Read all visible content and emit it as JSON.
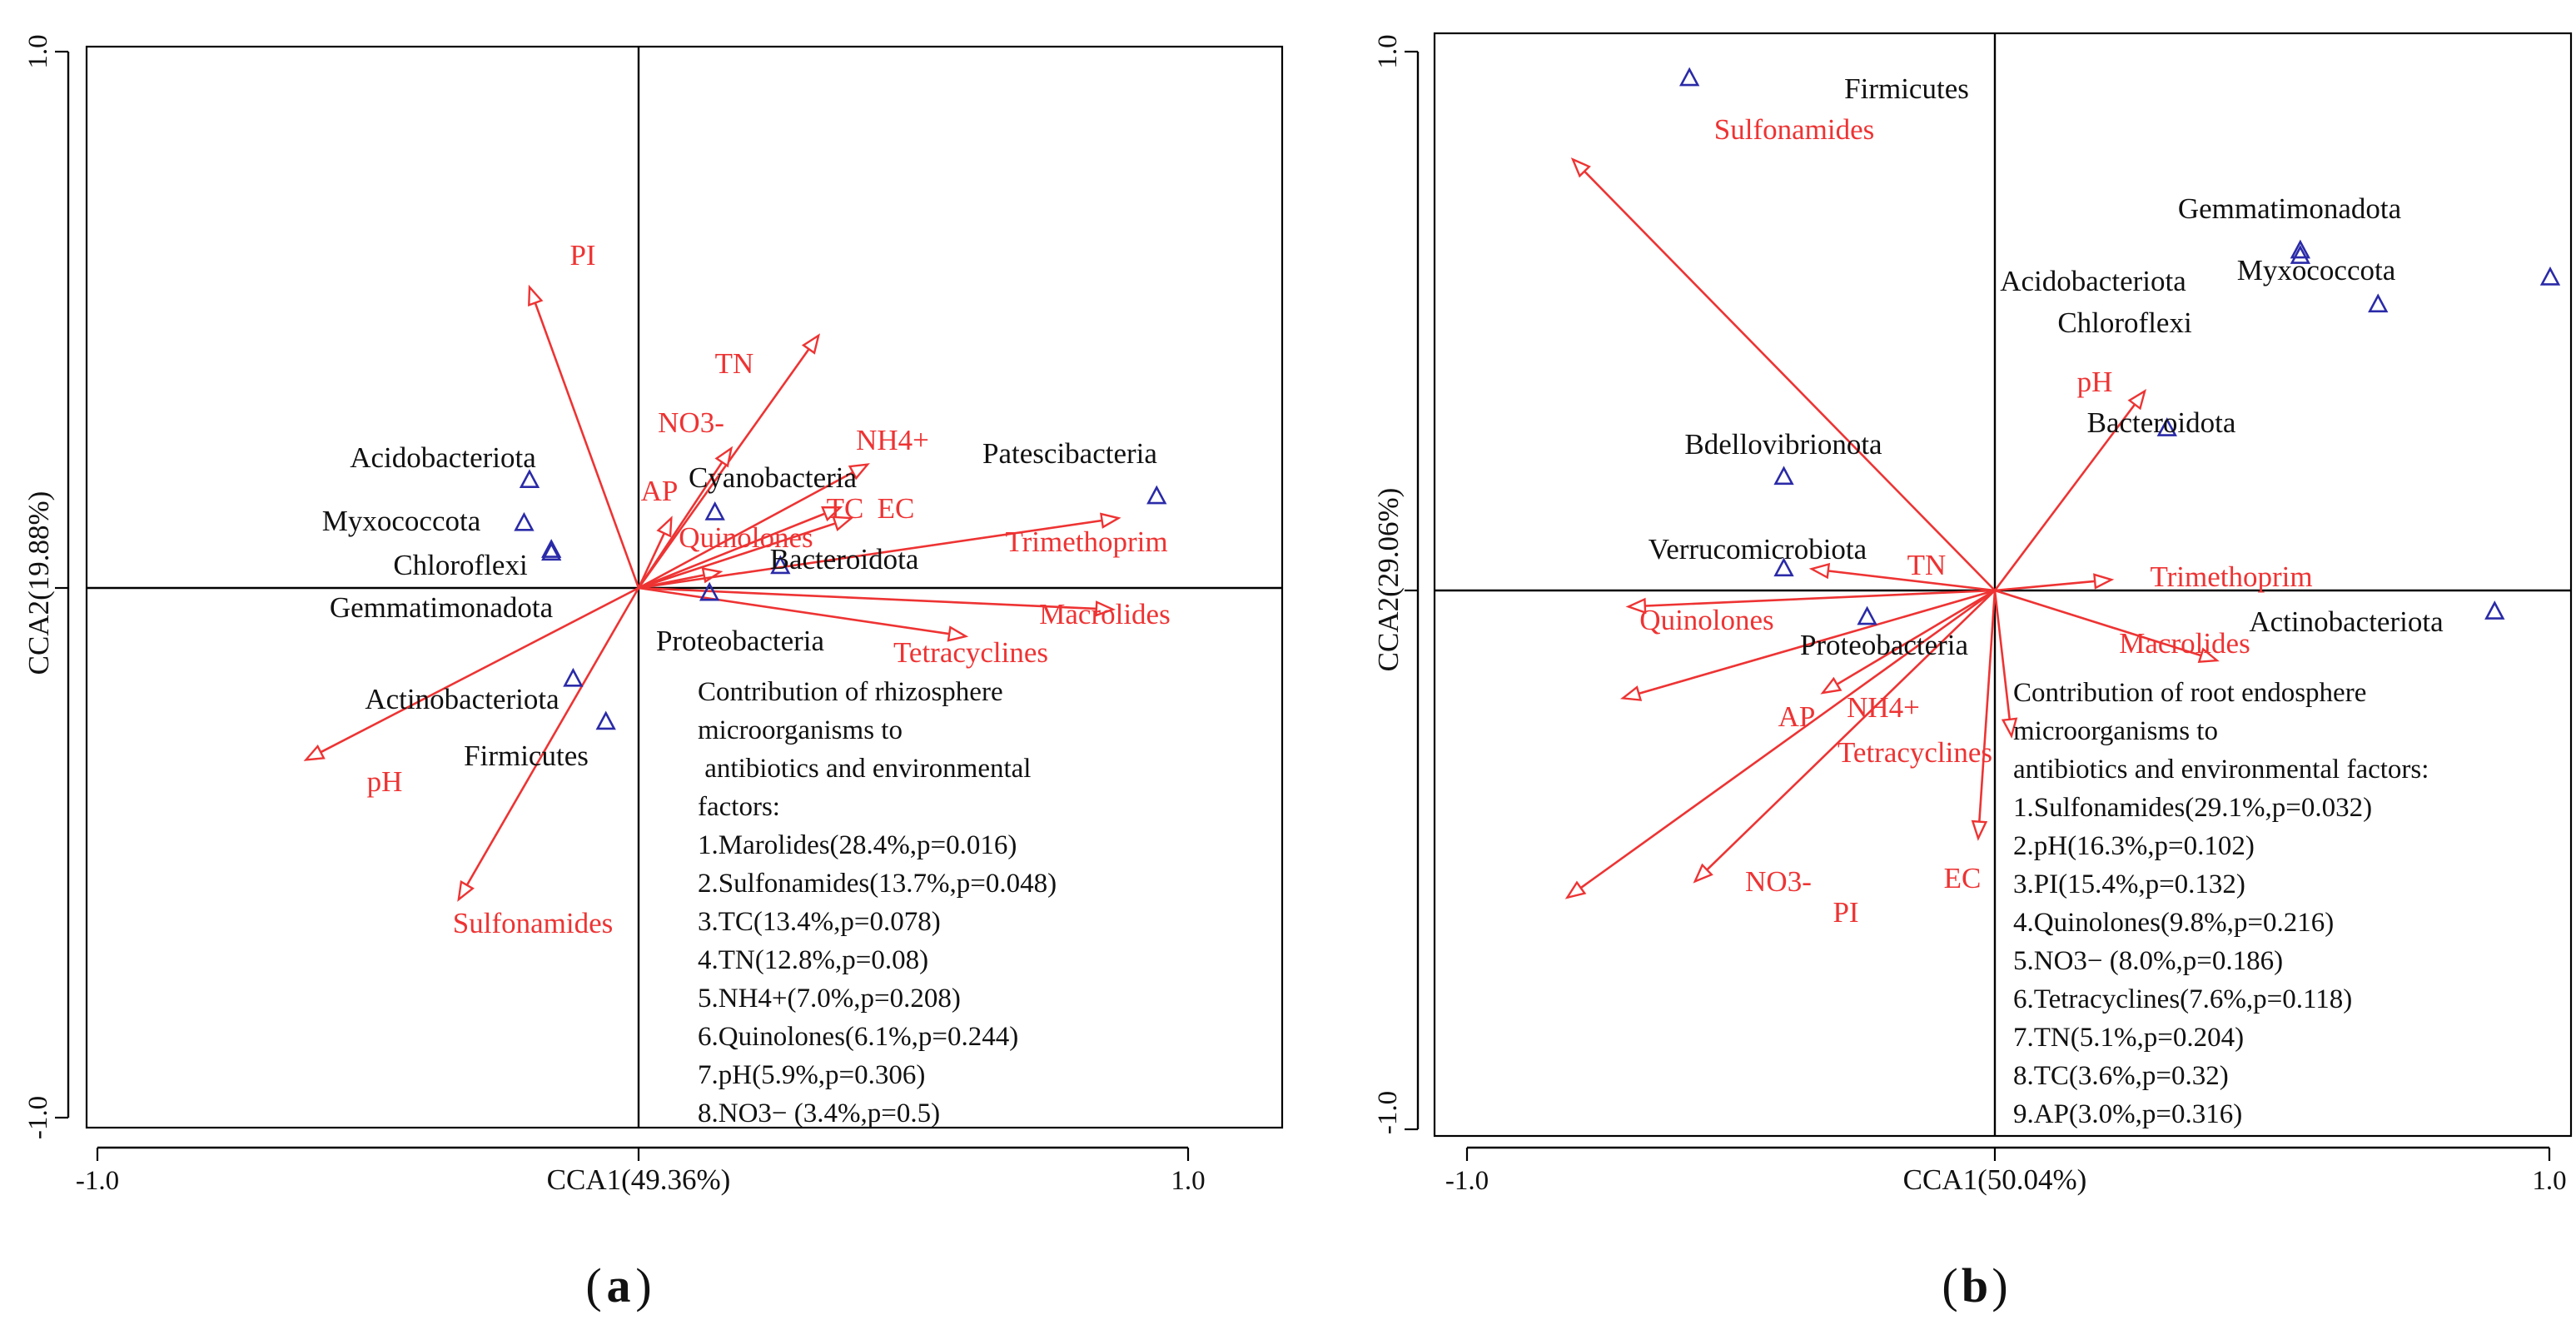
{
  "colors": {
    "arrow": "#ee3333",
    "arrow_text": "#ee3333",
    "species": "#2a2aa8",
    "text": "#111111",
    "axis": "#000000"
  },
  "chart_data": [
    {
      "panel": "(a)",
      "type": "scatter",
      "subtype": "CCA biplot",
      "xlabel": "CCA1(49.36%)",
      "ylabel": "CCA2(19.88%)",
      "xlim": [
        -1.0,
        1.0
      ],
      "ylim": [
        -1.0,
        1.0
      ],
      "x_ticks": [
        {
          "v": -1.0,
          "label": "-1.0"
        },
        {
          "v": 1.0,
          "label": "1.0"
        }
      ],
      "y_ticks": [
        {
          "v": 1.0,
          "label": "1.0"
        },
        {
          "v": -1.0,
          "label": "-1.0"
        }
      ],
      "arrows": [
        {
          "name": "PI",
          "x": -0.2,
          "y": 0.56
        },
        {
          "name": "TN",
          "x": 0.33,
          "y": 0.47
        },
        {
          "name": "NO3-",
          "x": 0.17,
          "y": 0.26
        },
        {
          "name": "AP",
          "x": 0.06,
          "y": 0.13
        },
        {
          "name": "NH4+",
          "x": 0.42,
          "y": 0.23
        },
        {
          "name": "TC",
          "x": 0.37,
          "y": 0.15
        },
        {
          "name": "EC",
          "x": 0.39,
          "y": 0.13
        },
        {
          "name": "Quinolones",
          "x": 0.15,
          "y": 0.03
        },
        {
          "name": "Trimethoprim",
          "x": 0.88,
          "y": 0.13
        },
        {
          "name": "Macrolides",
          "x": 0.87,
          "y": -0.04
        },
        {
          "name": "Tetracyclines",
          "x": 0.6,
          "y": -0.09
        },
        {
          "name": "pH",
          "x": -0.61,
          "y": -0.32
        },
        {
          "name": "Sulfonamides",
          "x": -0.33,
          "y": -0.58
        }
      ],
      "arrow_labels": [
        "PI",
        "TN",
        "NO3-",
        "AP",
        "NH4+",
        "TC",
        "EC",
        "Quinolones",
        "Trimethoprim",
        "Macrolides",
        "Tetracyclines",
        "pH",
        "Sulfonamides"
      ],
      "species": [
        {
          "name": "Acidobacteriota",
          "x": -0.2,
          "y": 0.2
        },
        {
          "name": "Myxococcota",
          "x": -0.21,
          "y": 0.12
        },
        {
          "name": "Chloroflexi",
          "x": -0.16,
          "y": 0.07
        },
        {
          "name": "Gemmatimonadota",
          "x": -0.16,
          "y": 0.065
        },
        {
          "name": "Cyanobacteria",
          "x": 0.14,
          "y": 0.14
        },
        {
          "name": "Patescibacteria",
          "x": 0.95,
          "y": 0.17
        },
        {
          "name": "Bacteroidota",
          "x": 0.26,
          "y": 0.04
        },
        {
          "name": "Proteobacteria",
          "x": 0.13,
          "y": -0.01
        },
        {
          "name": "Actinobacteriota",
          "x": -0.12,
          "y": -0.17
        },
        {
          "name": "Firmicutes",
          "x": -0.06,
          "y": -0.25
        }
      ],
      "species_labels": [
        "Acidobacteriota",
        "Myxococcota",
        "Chloroflexi",
        "Gemmatimonadota",
        "Cyanobacteria",
        "Patescibacteria",
        "Bacteroidota",
        "Proteobacteria",
        "Actinobacteriota",
        "Firmicutes"
      ],
      "contribution": [
        "Contribution of rhizosphere",
        "microorganisms to",
        " antibiotics and environmental",
        "factors:",
        "1.Marolides(28.4%,p=0.016)",
        "2.Sulfonamides(13.7%,p=0.048)",
        "3.TC(13.4%,p=0.078)",
        "4.TN(12.8%,p=0.08)",
        "5.NH4+(7.0%,p=0.208)",
        "6.Quinolones(6.1%,p=0.244)",
        "7.pH(5.9%,p=0.306)",
        "8.NO3− (3.4%,p=0.5)"
      ]
    },
    {
      "panel": "(b)",
      "type": "scatter",
      "subtype": "CCA biplot",
      "xlabel": "CCA1(50.04%)",
      "ylabel": "CCA2(29.06%)",
      "xlim": [
        -1.0,
        1.0
      ],
      "ylim": [
        -1.0,
        1.0
      ],
      "x_ticks": [
        {
          "v": -1.0,
          "label": "-1.0"
        },
        {
          "v": 1.0,
          "label": "1.0"
        }
      ],
      "y_ticks": [
        {
          "v": 1.0,
          "label": "1.0"
        },
        {
          "v": -1.0,
          "label": "-1.0"
        }
      ],
      "arrows": [
        {
          "name": "Sulfonamides",
          "x": -0.76,
          "y": 0.8
        },
        {
          "name": "pH",
          "x": 0.27,
          "y": 0.37
        },
        {
          "name": "Trimethoprim",
          "x": 0.21,
          "y": 0.02
        },
        {
          "name": "Macrolides",
          "x": 0.4,
          "y": -0.13
        },
        {
          "name": "TN",
          "x": -0.33,
          "y": 0.04
        },
        {
          "name": "Quinolones",
          "x": -0.66,
          "y": -0.03
        },
        {
          "name": "AP",
          "x": -0.67,
          "y": -0.2
        },
        {
          "name": "NH4+",
          "x": -0.31,
          "y": -0.19
        },
        {
          "name": "Tetracyclines",
          "x": 0.03,
          "y": -0.27
        },
        {
          "name": "NO3-",
          "x": -0.77,
          "y": -0.57
        },
        {
          "name": "PI",
          "x": -0.54,
          "y": -0.54
        },
        {
          "name": "EC",
          "x": -0.03,
          "y": -0.46
        }
      ],
      "arrow_labels": [
        "Sulfonamides",
        "pH",
        "Trimethoprim",
        "Macrolides",
        "TN",
        "Quinolones",
        "AP",
        "NH4+",
        "Tetracyclines",
        "NO3-",
        "PI",
        "EC"
      ],
      "species": [
        {
          "name": "Firmicutes",
          "x": -0.55,
          "y": 0.95
        },
        {
          "name": "Gemmatimonadota",
          "x": 0.55,
          "y": 0.63
        },
        {
          "name": "Acidobacteriota",
          "x": 0.55,
          "y": 0.62
        },
        {
          "name": "Myxococcota",
          "x": 1.0,
          "y": 0.58
        },
        {
          "name": "Chloroflexi",
          "x": 0.69,
          "y": 0.53
        },
        {
          "name": "Bacteroidota",
          "x": 0.31,
          "y": 0.3
        },
        {
          "name": "Bdellovibrionota",
          "x": -0.38,
          "y": 0.21
        },
        {
          "name": "Verrucomicrobiota",
          "x": -0.38,
          "y": 0.04
        },
        {
          "name": "Proteobacteria",
          "x": -0.23,
          "y": -0.05
        },
        {
          "name": "Actinobacteriota",
          "x": 0.9,
          "y": -0.04
        }
      ],
      "species_labels": [
        "Firmicutes",
        "Gemmatimonadota",
        "Acidobacteriota",
        "Myxococcota",
        "Chloroflexi",
        "Bacteroidota",
        "Bdellovibrionota",
        "Verrucomicrobiota",
        "Proteobacteria",
        "Actinobacteriota"
      ],
      "contribution": [
        "Contribution of root endosphere",
        "microorganisms to",
        "antibiotics and environmental factors:",
        "1.Sulfonamides(29.1%,p=0.032)",
        "2.pH(16.3%,p=0.102)",
        "3.PI(15.4%,p=0.132)",
        "4.Quinolones(9.8%,p=0.216)",
        "5.NO3− (8.0%,p=0.186)",
        "6.Tetracyclines(7.6%,p=0.118)",
        "7.TN(5.1%,p=0.204)",
        "8.TC(3.6%,p=0.32)",
        "9.AP(3.0%,p=0.316)"
      ]
    }
  ],
  "captions": [
    "a",
    "b"
  ]
}
